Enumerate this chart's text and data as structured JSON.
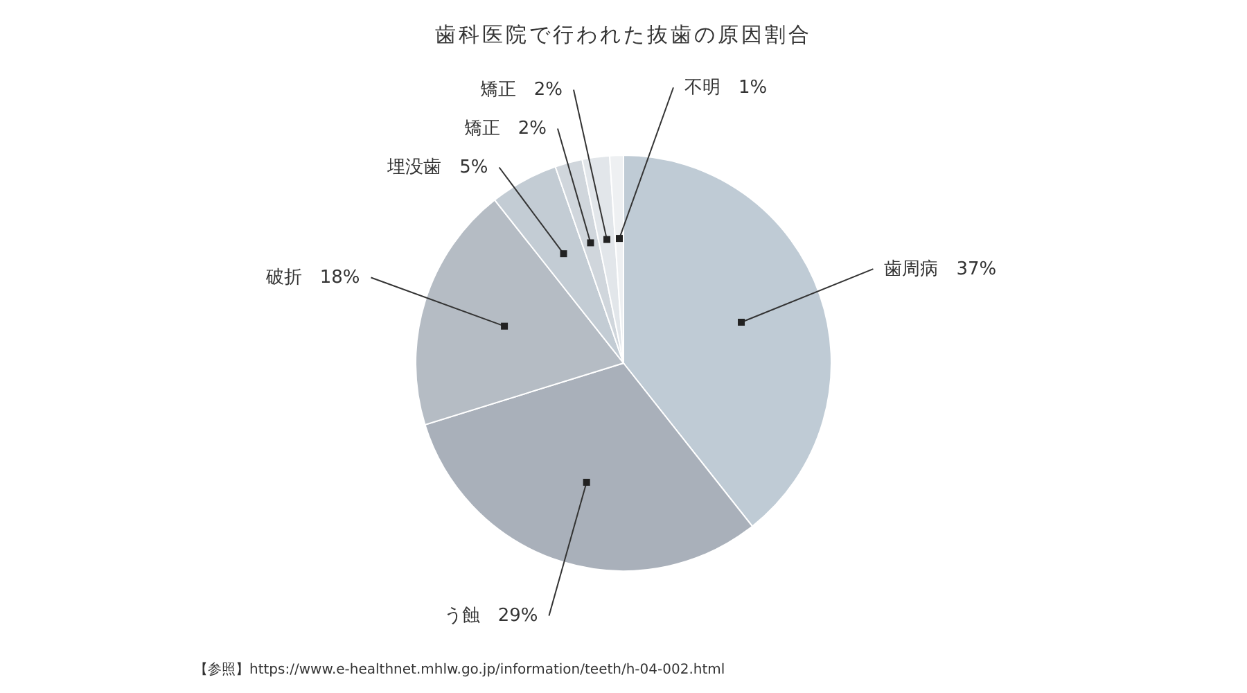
{
  "chart_data": {
    "type": "pie",
    "title": "歯科医院で行われた抜歯の原因割合",
    "categories": [
      "歯周病",
      "う蝕",
      "破折",
      "埋没歯",
      "矯正",
      "矯正",
      "不明"
    ],
    "values": [
      37,
      29,
      18,
      5,
      2,
      2,
      1
    ],
    "value_labels": [
      "37%",
      "29%",
      "18%",
      "5%",
      "2%",
      "2%",
      "1%"
    ],
    "colors": [
      "#bfcbd5",
      "#a9b0ba",
      "#b5bcc4",
      "#c3ccd4",
      "#d0d6dc",
      "#e2e6ea",
      "#eef0f2"
    ],
    "annotations": [
      "【参照】https://www.e-healthnet.mhlw.go.jp/information/teeth/h-04-002.html"
    ]
  }
}
